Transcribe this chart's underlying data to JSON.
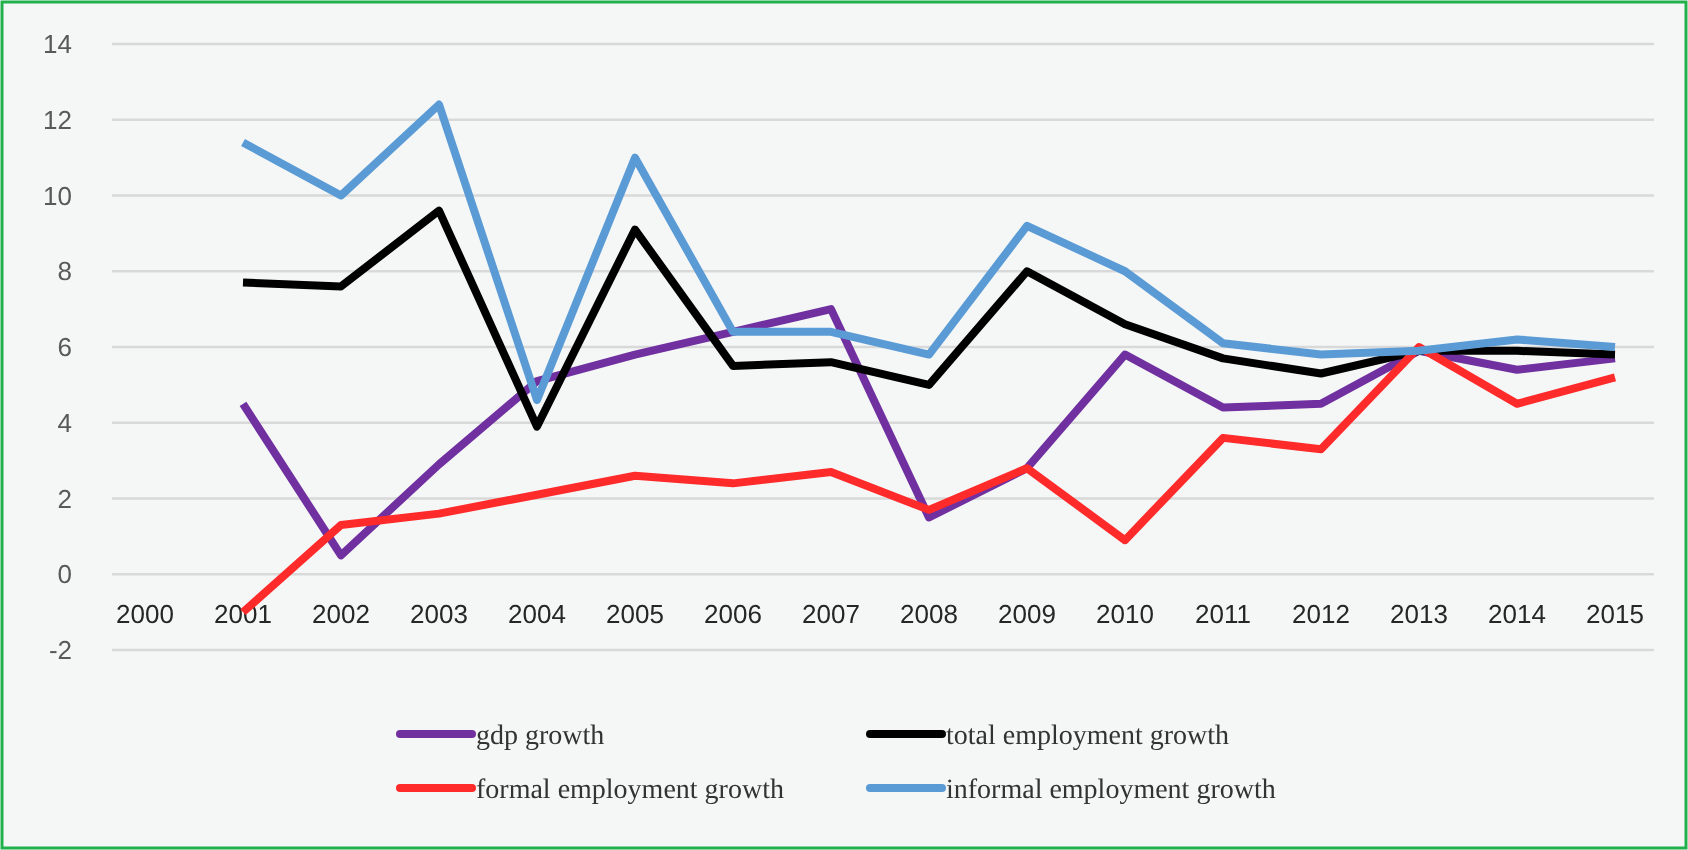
{
  "chart_data": {
    "type": "line",
    "categories": [
      "2000",
      "2001",
      "2002",
      "2003",
      "2004",
      "2005",
      "2006",
      "2007",
      "2008",
      "2009",
      "2010",
      "2011",
      "2012",
      "2013",
      "2014",
      "2015"
    ],
    "series": [
      {
        "name": "gdp growth",
        "color": "#7030a0",
        "values": [
          null,
          4.5,
          0.5,
          2.9,
          5.1,
          5.8,
          6.4,
          7.0,
          1.5,
          2.8,
          5.8,
          4.4,
          4.5,
          5.9,
          5.4,
          5.7
        ]
      },
      {
        "name": "total employment growth",
        "color": "#000000",
        "values": [
          null,
          7.7,
          7.6,
          9.6,
          3.9,
          9.1,
          5.5,
          5.6,
          5.0,
          8.0,
          6.6,
          5.7,
          5.3,
          5.9,
          5.9,
          5.8
        ]
      },
      {
        "name": "formal employment growth",
        "color": "#ff2a2a",
        "values": [
          null,
          -1.0,
          1.3,
          1.6,
          2.1,
          2.6,
          2.4,
          2.7,
          1.7,
          2.8,
          0.9,
          3.6,
          3.3,
          6.0,
          4.5,
          5.2
        ]
      },
      {
        "name": "informal employment growth",
        "color": "#5b9bd5",
        "values": [
          null,
          11.4,
          10.0,
          12.4,
          4.6,
          11.0,
          6.4,
          6.4,
          5.8,
          9.2,
          8.0,
          6.1,
          5.8,
          5.9,
          6.2,
          6.0
        ]
      }
    ],
    "ylim": [
      -2,
      14
    ],
    "yticks": [
      -2,
      0,
      2,
      4,
      6,
      8,
      10,
      12,
      14
    ],
    "grid": "y",
    "legend": "bottom",
    "marker": "none",
    "line_style": "solid"
  }
}
